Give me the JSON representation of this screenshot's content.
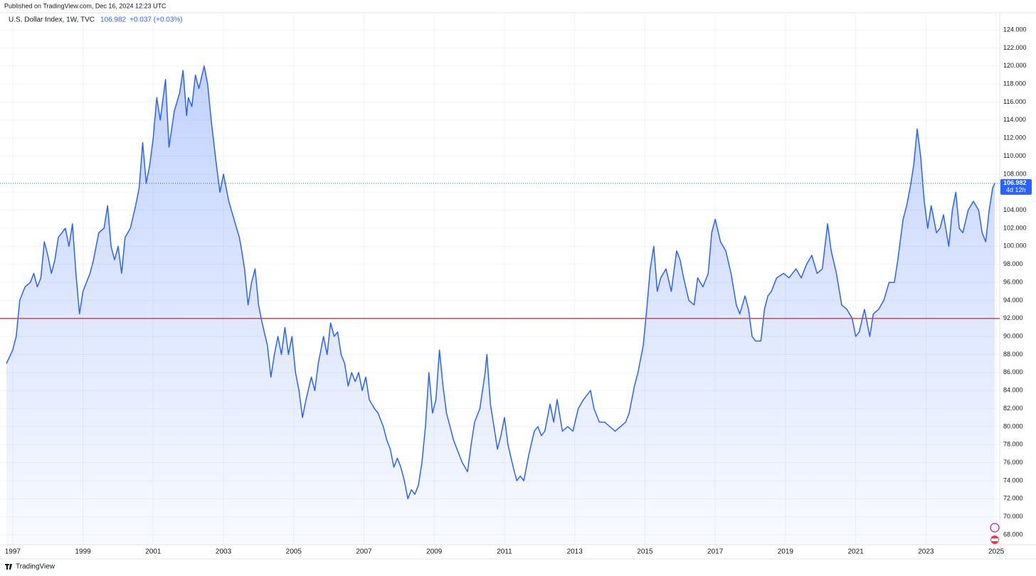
{
  "chart_data": {
    "type": "area",
    "published": "Published on TradingView.com, Dec 16, 2024 12:23 UTC",
    "brand": "TradingView",
    "last_price": 106.982,
    "change_label": "+0.037 (+0.03%)",
    "countdown": "4d 12h",
    "horizontal_line": {
      "value": 92,
      "color": "#f23645"
    },
    "grid": true,
    "x": [
      1996.82,
      1997.0,
      1997.1,
      1997.2,
      1997.35,
      1997.5,
      1997.6,
      1997.7,
      1997.8,
      1997.9,
      1998.0,
      1998.1,
      1998.2,
      1998.3,
      1998.4,
      1998.5,
      1998.6,
      1998.7,
      1998.8,
      1998.9,
      1999.0,
      1999.2,
      1999.3,
      1999.45,
      1999.6,
      1999.7,
      1999.8,
      1999.9,
      2000.0,
      2000.1,
      2000.2,
      2000.35,
      2000.5,
      2000.6,
      2000.7,
      2000.8,
      2000.9,
      2001.0,
      2001.1,
      2001.2,
      2001.35,
      2001.45,
      2001.6,
      2001.75,
      2001.85,
      2001.95,
      2002.0,
      2002.1,
      2002.2,
      2002.3,
      2002.45,
      2002.55,
      2002.65,
      2002.8,
      2002.9,
      2003.0,
      2003.15,
      2003.3,
      2003.45,
      2003.5,
      2003.6,
      2003.7,
      2003.8,
      2003.9,
      2004.0,
      2004.1,
      2004.25,
      2004.35,
      2004.45,
      2004.55,
      2004.65,
      2004.75,
      2004.85,
      2004.95,
      2005.05,
      2005.15,
      2005.25,
      2005.35,
      2005.5,
      2005.6,
      2005.7,
      2005.85,
      2005.95,
      2006.05,
      2006.15,
      2006.25,
      2006.35,
      2006.45,
      2006.55,
      2006.65,
      2006.75,
      2006.85,
      2006.95,
      2007.05,
      2007.15,
      2007.3,
      2007.4,
      2007.55,
      2007.65,
      2007.75,
      2007.85,
      2007.95,
      2008.05,
      2008.15,
      2008.25,
      2008.35,
      2008.45,
      2008.55,
      2008.65,
      2008.75,
      2008.85,
      2008.95,
      2009.05,
      2009.15,
      2009.25,
      2009.35,
      2009.45,
      2009.55,
      2009.65,
      2009.8,
      2009.95,
      2010.05,
      2010.15,
      2010.3,
      2010.45,
      2010.5,
      2010.6,
      2010.7,
      2010.8,
      2010.9,
      2011.0,
      2011.1,
      2011.25,
      2011.35,
      2011.45,
      2011.55,
      2011.7,
      2011.85,
      2011.95,
      2012.05,
      2012.15,
      2012.3,
      2012.4,
      2012.5,
      2012.65,
      2012.8,
      2012.95,
      2013.1,
      2013.25,
      2013.45,
      2013.55,
      2013.7,
      2013.85,
      2014.0,
      2014.15,
      2014.3,
      2014.45,
      2014.55,
      2014.7,
      2014.8,
      2014.95,
      2015.05,
      2015.15,
      2015.25,
      2015.35,
      2015.45,
      2015.6,
      2015.75,
      2015.9,
      2016.0,
      2016.1,
      2016.25,
      2016.4,
      2016.5,
      2016.65,
      2016.8,
      2016.9,
      2017.0,
      2017.15,
      2017.3,
      2017.45,
      2017.6,
      2017.7,
      2017.85,
      2017.95,
      2018.05,
      2018.15,
      2018.3,
      2018.4,
      2018.5,
      2018.6,
      2018.75,
      2018.95,
      2019.1,
      2019.3,
      2019.45,
      2019.6,
      2019.75,
      2019.9,
      2020.05,
      2020.2,
      2020.3,
      2020.45,
      2020.6,
      2020.75,
      2020.9,
      2021.0,
      2021.1,
      2021.25,
      2021.4,
      2021.5,
      2021.65,
      2021.8,
      2021.95,
      2022.1,
      2022.2,
      2022.35,
      2022.45,
      2022.55,
      2022.65,
      2022.75,
      2022.85,
      2022.95,
      2023.05,
      2023.15,
      2023.3,
      2023.4,
      2023.5,
      2023.65,
      2023.75,
      2023.85,
      2023.95,
      2024.05,
      2024.2,
      2024.35,
      2024.5,
      2024.6,
      2024.7,
      2024.8,
      2024.9,
      2024.96
    ],
    "series": [
      {
        "name": "U.S. Dollar Index, 1W, TVC",
        "color": "#2962ff",
        "values": [
          87.0,
          88.5,
          90,
          94,
          95.5,
          96,
          97,
          95.5,
          96.5,
          100.5,
          99,
          97,
          98.5,
          101,
          101.5,
          102,
          100,
          102.5,
          97,
          92.5,
          95,
          97,
          98.5,
          101.5,
          102,
          104.5,
          100,
          98.5,
          100,
          97,
          101,
          102,
          104.5,
          106.5,
          111.5,
          107,
          109,
          112,
          116.5,
          114,
          118.5,
          111,
          115,
          117,
          119.5,
          114.5,
          116.5,
          115.5,
          119,
          117.5,
          120,
          118,
          114,
          109,
          106,
          108,
          105,
          103,
          101,
          100,
          97.5,
          93.5,
          96,
          97.5,
          93.5,
          91.5,
          89,
          85.5,
          88,
          90,
          88,
          91,
          88,
          90,
          86,
          84,
          81,
          83,
          85.5,
          84,
          87,
          90,
          88,
          91.5,
          90,
          90.5,
          88,
          87,
          84.5,
          86,
          85,
          86,
          84,
          85.5,
          83,
          82,
          81.5,
          80,
          78.5,
          77.5,
          75.5,
          76.5,
          75.5,
          74,
          72,
          73,
          72.5,
          73.5,
          76,
          80,
          86,
          81.5,
          83,
          88.5,
          84.5,
          81.5,
          80,
          78.5,
          77.5,
          76,
          75,
          78,
          80.5,
          82,
          86,
          88,
          82.5,
          80,
          77.5,
          79,
          81,
          78,
          75.5,
          74,
          74.5,
          74,
          77,
          79.5,
          80,
          79,
          79.5,
          82.5,
          80.5,
          83,
          79.5,
          80,
          79.5,
          82,
          83,
          84,
          82,
          80.5,
          80.5,
          80,
          79.5,
          80,
          80.5,
          81.5,
          84.5,
          86,
          89,
          93,
          97.5,
          100,
          95,
          96.5,
          97.5,
          95,
          99.5,
          98.5,
          96.5,
          94,
          93.5,
          96.5,
          95.5,
          97,
          101.5,
          103,
          100.5,
          99.5,
          97,
          93.5,
          92.5,
          94.5,
          93,
          90,
          89.5,
          89.5,
          93,
          94.5,
          95,
          96.5,
          97,
          96.5,
          97.5,
          96.5,
          98,
          99,
          97,
          97.5,
          102.5,
          99.5,
          97,
          93.5,
          93,
          92,
          90,
          90.5,
          93,
          90,
          92.5,
          93,
          94,
          96,
          96,
          98.5,
          103,
          104.5,
          106.5,
          109,
          113,
          110,
          105,
          102,
          104.5,
          101.5,
          102,
          103.5,
          100,
          104,
          106,
          102,
          101.5,
          104,
          105,
          104,
          101.5,
          100.5,
          104,
          106.5,
          106.982
        ]
      }
    ],
    "xlim": [
      1996.8,
      2025.1
    ],
    "xticks": [
      1997,
      1999,
      2001,
      2003,
      2005,
      2007,
      2009,
      2011,
      2013,
      2015,
      2017,
      2019,
      2021,
      2023,
      2025
    ],
    "ylim": [
      66.9,
      125.9
    ],
    "yticks": [
      {
        "value": 68,
        "label": "68.000"
      },
      {
        "value": 70,
        "label": "70.000"
      },
      {
        "value": 72,
        "label": "72.000"
      },
      {
        "value": 74,
        "label": "74.000"
      },
      {
        "value": 76,
        "label": "76.000"
      },
      {
        "value": 78,
        "label": "78.000"
      },
      {
        "value": 80,
        "label": "80.000"
      },
      {
        "value": 82,
        "label": "82.000"
      },
      {
        "value": 84,
        "label": "84.000"
      },
      {
        "value": 86,
        "label": "86.000"
      },
      {
        "value": 88,
        "label": "88.000"
      },
      {
        "value": 90,
        "label": "90.000"
      },
      {
        "value": 92,
        "label": "92.000"
      },
      {
        "value": 94,
        "label": "94.000"
      },
      {
        "value": 96,
        "label": "96.000"
      },
      {
        "value": 98,
        "label": "98.000"
      },
      {
        "value": 100,
        "label": "100.000"
      },
      {
        "value": 102,
        "label": "102.000"
      },
      {
        "value": 104,
        "label": "104.000"
      },
      {
        "value": 106,
        "label": "106.000"
      },
      {
        "value": 108,
        "label": "108.000"
      },
      {
        "value": 110,
        "label": "110.000"
      },
      {
        "value": 112,
        "label": "112.000"
      },
      {
        "value": 114,
        "label": "114.000"
      },
      {
        "value": 116,
        "label": "116.000"
      },
      {
        "value": 118,
        "label": "118.000"
      },
      {
        "value": 120,
        "label": "120.000"
      },
      {
        "value": 122,
        "label": "122.000"
      },
      {
        "value": 124,
        "label": "124.000"
      }
    ]
  }
}
